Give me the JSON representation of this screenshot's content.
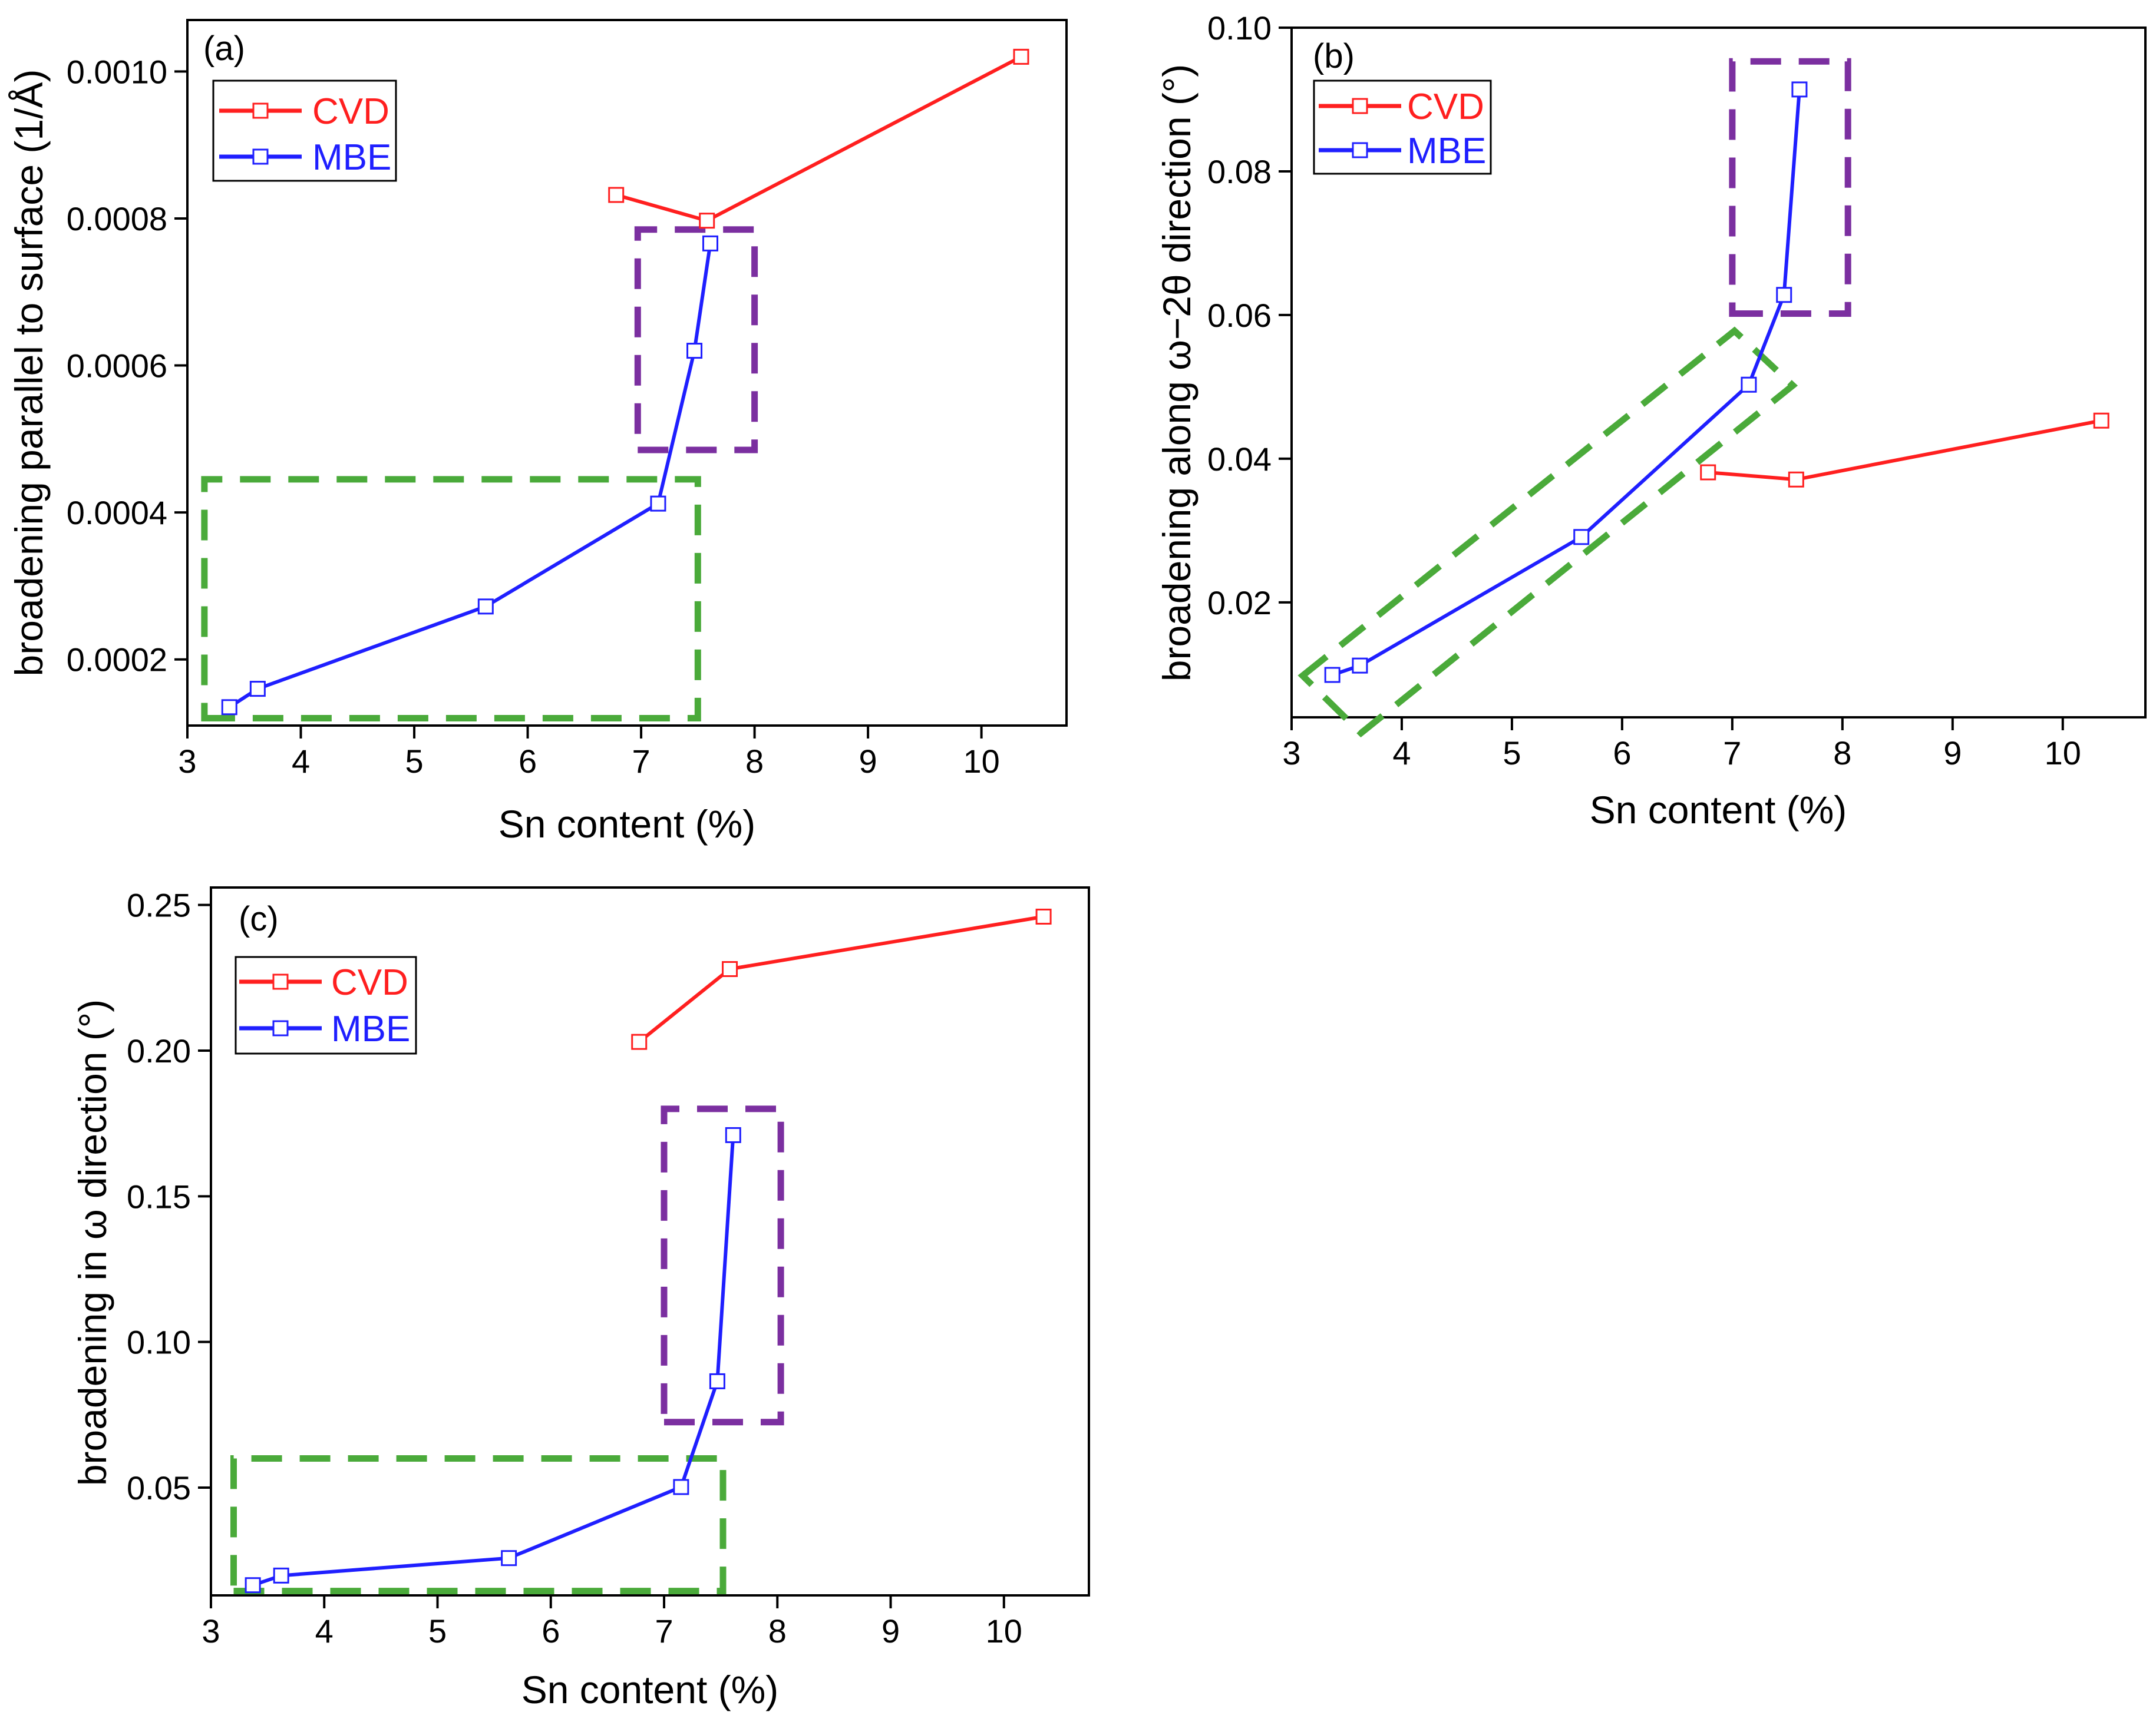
{
  "chart_data": [
    {
      "type": "line",
      "panel_label": "(a)",
      "xlabel": "Sn content (%)",
      "ylabel": "broadening parallel to surface (1/Å)",
      "xlim": [
        3,
        10.75
      ],
      "ylim": [
        0.00011,
        0.00107
      ],
      "xticks": [
        3,
        4,
        5,
        6,
        7,
        8,
        9,
        10
      ],
      "xtick_labels": [
        "3",
        "4",
        "5",
        "6",
        "7",
        "8",
        "9",
        "10"
      ],
      "yticks": [
        0.0002,
        0.0004,
        0.0006,
        0.0008,
        0.001
      ],
      "ytick_labels": [
        "0.0002",
        "0.0004",
        "0.0006",
        "0.0008",
        "0.0010"
      ],
      "legend_position": "top-left",
      "series": [
        {
          "name": "CVD",
          "color": "#ff1f1f",
          "x": [
            6.78,
            7.58,
            10.35
          ],
          "y": [
            0.000832,
            0.000797,
            0.00102
          ]
        },
        {
          "name": "MBE",
          "color": "#1f1fff",
          "x": [
            3.37,
            3.62,
            5.63,
            7.15,
            7.47,
            7.61
          ],
          "y": [
            0.000135,
            0.00016,
            0.000272,
            0.000412,
            0.00062,
            0.000766
          ]
        }
      ],
      "highlight_boxes": [
        {
          "color": "#4aaa3a",
          "corners": [
            [
              3.15,
              0.00012
            ],
            [
              7.5,
              0.00012
            ],
            [
              7.5,
              0.000445
            ],
            [
              3.15,
              0.000445
            ]
          ]
        },
        {
          "color": "#7b2fa0",
          "corners": [
            [
              6.97,
              0.000485
            ],
            [
              8.0,
              0.000485
            ],
            [
              8.0,
              0.000785
            ],
            [
              6.97,
              0.000785
            ]
          ]
        }
      ]
    },
    {
      "type": "line",
      "panel_label": "(b)",
      "xlabel": "Sn content (%)",
      "ylabel": "broadening along ω−2θ direction (°)",
      "xlim": [
        3,
        10.75
      ],
      "ylim": [
        0.004,
        0.1
      ],
      "xticks": [
        3,
        4,
        5,
        6,
        7,
        8,
        9,
        10
      ],
      "xtick_labels": [
        "3",
        "4",
        "5",
        "6",
        "7",
        "8",
        "9",
        "10"
      ],
      "yticks": [
        0.02,
        0.04,
        0.06,
        0.08,
        0.1
      ],
      "ytick_labels": [
        "0.02",
        "0.04",
        "0.06",
        "0.08",
        "0.10"
      ],
      "legend_position": "top-left",
      "series": [
        {
          "name": "CVD",
          "color": "#ff1f1f",
          "x": [
            6.78,
            7.58,
            10.35
          ],
          "y": [
            0.0381,
            0.0371,
            0.0453
          ]
        },
        {
          "name": "MBE",
          "color": "#1f1fff",
          "x": [
            3.37,
            3.62,
            5.63,
            7.15,
            7.47,
            7.61
          ],
          "y": [
            0.0099,
            0.0112,
            0.0291,
            0.0503,
            0.0628,
            0.0914
          ]
        }
      ],
      "highlight_boxes": [
        {
          "color": "#4aaa3a",
          "corners": [
            [
              3.1,
              0.0098
            ],
            [
              7.02,
              0.0578
            ],
            [
              7.55,
              0.0502
            ],
            [
              3.63,
              0.0018
            ]
          ]
        },
        {
          "color": "#7b2fa0",
          "corners": [
            [
              7.0,
              0.0602
            ],
            [
              8.05,
              0.0602
            ],
            [
              8.05,
              0.0953
            ],
            [
              7.0,
              0.0953
            ]
          ]
        }
      ]
    },
    {
      "type": "line",
      "panel_label": "(c)",
      "xlabel": "Sn content (%)",
      "ylabel": "broadening in ω direction (°)",
      "xlim": [
        3,
        10.75
      ],
      "ylim": [
        0.013,
        0.256
      ],
      "xticks": [
        3,
        4,
        5,
        6,
        7,
        8,
        9,
        10
      ],
      "xtick_labels": [
        "3",
        "4",
        "5",
        "6",
        "7",
        "8",
        "9",
        "10"
      ],
      "yticks": [
        0.05,
        0.1,
        0.15,
        0.2,
        0.25
      ],
      "ytick_labels": [
        "0.05",
        "0.10",
        "0.15",
        "0.20",
        "0.25"
      ],
      "legend_position": "top-left",
      "series": [
        {
          "name": "CVD",
          "color": "#ff1f1f",
          "x": [
            6.78,
            7.58,
            10.35
          ],
          "y": [
            0.203,
            0.228,
            0.246
          ]
        },
        {
          "name": "MBE",
          "color": "#1f1fff",
          "x": [
            3.37,
            3.62,
            5.63,
            7.15,
            7.47,
            7.61
          ],
          "y": [
            0.0165,
            0.0198,
            0.0258,
            0.0502,
            0.0865,
            0.171
          ]
        }
      ],
      "highlight_boxes": [
        {
          "color": "#4aaa3a",
          "corners": [
            [
              3.2,
              0.0145
            ],
            [
              7.52,
              0.0145
            ],
            [
              7.52,
              0.06
            ],
            [
              3.2,
              0.06
            ]
          ]
        },
        {
          "color": "#7b2fa0",
          "corners": [
            [
              7.0,
              0.0725
            ],
            [
              8.03,
              0.0725
            ],
            [
              8.03,
              0.18
            ],
            [
              7.0,
              0.18
            ]
          ]
        }
      ]
    }
  ]
}
